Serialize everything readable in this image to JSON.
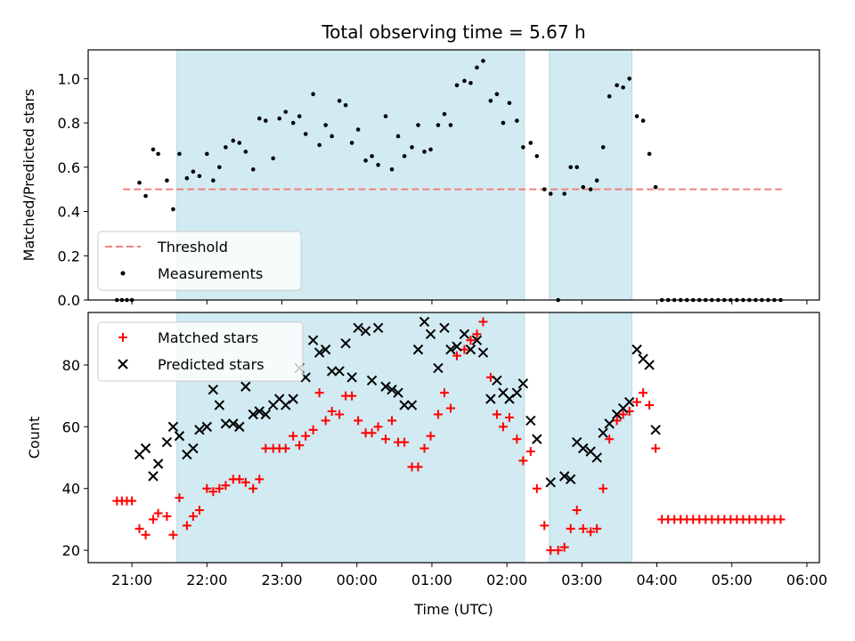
{
  "chart_data": [
    {
      "type": "scatter",
      "title": "Total observing time = 5.67 h",
      "ylabel": "Matched/Predicted stars",
      "ylim": [
        0,
        1.13
      ],
      "yticks": [
        0.0,
        0.2,
        0.4,
        0.6,
        0.8,
        1.0
      ],
      "yticklabels": [
        "0.0",
        "0.2",
        "0.4",
        "0.6",
        "0.8",
        "1.0"
      ],
      "shaded_intervals": [
        [
          "21:36",
          "02:14"
        ],
        [
          "02:34",
          "03:40"
        ]
      ],
      "shade_color": "#add8e6",
      "threshold": {
        "name": "Threshold",
        "value": 0.5,
        "x_start": "20:53",
        "x_end": "05:40",
        "color": "#f08080",
        "style": "dashed"
      },
      "series": [
        {
          "name": "Measurements",
          "color": "#000000",
          "x": [
            "20:48",
            "20:52",
            "20:56",
            "21:00",
            "21:06",
            "21:11",
            "21:17",
            "21:21",
            "21:28",
            "21:33",
            "21:38",
            "21:44",
            "21:49",
            "21:54",
            "22:00",
            "22:05",
            "22:10",
            "22:15",
            "22:21",
            "22:26",
            "22:31",
            "22:37",
            "22:42",
            "22:47",
            "22:53",
            "22:58",
            "23:03",
            "23:09",
            "23:14",
            "23:19",
            "23:25",
            "23:30",
            "23:35",
            "23:40",
            "23:46",
            "23:51",
            "23:56",
            "00:01",
            "00:07",
            "00:12",
            "00:17",
            "00:23",
            "00:28",
            "00:33",
            "00:38",
            "00:44",
            "00:49",
            "00:54",
            "00:59",
            "01:05",
            "01:10",
            "01:15",
            "01:20",
            "01:26",
            "01:31",
            "01:36",
            "01:41",
            "01:47",
            "01:52",
            "01:57",
            "02:02",
            "02:08",
            "02:13",
            "02:19",
            "02:24",
            "02:30",
            "02:35",
            "02:41",
            "02:46",
            "02:51",
            "02:56",
            "03:01",
            "03:07",
            "03:12",
            "03:17",
            "03:22",
            "03:28",
            "03:33",
            "03:38",
            "03:44",
            "03:49",
            "03:54",
            "03:59",
            "04:04",
            "04:09",
            "04:14",
            "04:19",
            "04:24",
            "04:29",
            "04:34",
            "04:39",
            "04:44",
            "04:49",
            "04:54",
            "04:59",
            "05:04",
            "05:09",
            "05:14",
            "05:19",
            "05:24",
            "05:29",
            "05:34",
            "05:39"
          ],
          "y": [
            0,
            0,
            0,
            0,
            0.53,
            0.47,
            0.68,
            0.66,
            0.54,
            0.41,
            0.66,
            0.55,
            0.58,
            0.56,
            0.66,
            0.54,
            0.6,
            0.69,
            0.72,
            0.71,
            0.67,
            0.59,
            0.82,
            0.81,
            0.64,
            0.82,
            0.85,
            0.8,
            0.83,
            0.75,
            0.93,
            0.7,
            0.79,
            0.74,
            0.9,
            0.88,
            0.71,
            0.77,
            0.63,
            0.65,
            0.61,
            0.83,
            0.59,
            0.74,
            0.65,
            0.69,
            0.79,
            0.67,
            0.68,
            0.79,
            0.84,
            0.79,
            0.97,
            0.99,
            0.98,
            1.05,
            1.08,
            0.9,
            0.93,
            0.8,
            0.89,
            0.81,
            0.69,
            0.71,
            0.65,
            0.5,
            0.48,
            0,
            0.48,
            0.6,
            0.6,
            0.51,
            0.5,
            0.54,
            0.69,
            0.92,
            0.97,
            0.96,
            1.0,
            0.83,
            0.81,
            0.66,
            0.51,
            0,
            0,
            0,
            0,
            0,
            0,
            0,
            0,
            0,
            0,
            0,
            0,
            0,
            0,
            0,
            0,
            0,
            0,
            0,
            0
          ]
        }
      ],
      "legend": {
        "position": "lower-left",
        "entries": [
          "Threshold",
          "Measurements"
        ]
      }
    },
    {
      "type": "scatter",
      "xlabel": "Time (UTC)",
      "ylabel": "Count",
      "ylim": [
        16,
        97
      ],
      "yticks": [
        20,
        40,
        60,
        80
      ],
      "yticklabels": [
        "20",
        "40",
        "60",
        "80"
      ],
      "xlim": [
        "20:25",
        "06:10"
      ],
      "xticks": [
        "21:00",
        "22:00",
        "23:00",
        "00:00",
        "01:00",
        "02:00",
        "03:00",
        "04:00",
        "05:00",
        "06:00"
      ],
      "shaded_intervals": [
        [
          "21:36",
          "02:14"
        ],
        [
          "02:34",
          "03:40"
        ]
      ],
      "shade_color": "#add8e6",
      "series": [
        {
          "name": "Matched stars",
          "marker": "+",
          "color": "#ff0000",
          "x": [
            "20:48",
            "20:52",
            "20:56",
            "21:00",
            "21:06",
            "21:11",
            "21:17",
            "21:21",
            "21:28",
            "21:33",
            "21:38",
            "21:44",
            "21:49",
            "21:54",
            "22:00",
            "22:05",
            "22:10",
            "22:15",
            "22:21",
            "22:26",
            "22:31",
            "22:37",
            "22:42",
            "22:47",
            "22:53",
            "22:58",
            "23:03",
            "23:09",
            "23:14",
            "23:19",
            "23:25",
            "23:30",
            "23:35",
            "23:40",
            "23:46",
            "23:51",
            "23:56",
            "00:01",
            "00:07",
            "00:12",
            "00:17",
            "00:23",
            "00:28",
            "00:33",
            "00:38",
            "00:44",
            "00:49",
            "00:54",
            "00:59",
            "01:05",
            "01:10",
            "01:15",
            "01:20",
            "01:26",
            "01:31",
            "01:36",
            "01:41",
            "01:47",
            "01:52",
            "01:57",
            "02:02",
            "02:08",
            "02:13",
            "02:19",
            "02:24",
            "02:30",
            "02:35",
            "02:41",
            "02:46",
            "02:51",
            "02:56",
            "03:01",
            "03:07",
            "03:12",
            "03:17",
            "03:22",
            "03:28",
            "03:33",
            "03:38",
            "03:44",
            "03:49",
            "03:54",
            "03:59",
            "04:04",
            "04:09",
            "04:14",
            "04:19",
            "04:24",
            "04:29",
            "04:34",
            "04:39",
            "04:44",
            "04:49",
            "04:54",
            "04:59",
            "05:04",
            "05:09",
            "05:14",
            "05:19",
            "05:24",
            "05:29",
            "05:34",
            "05:39"
          ],
          "y": [
            36,
            36,
            36,
            36,
            27,
            25,
            30,
            32,
            31,
            25,
            37,
            28,
            31,
            33,
            40,
            39,
            40,
            41,
            43,
            43,
            42,
            40,
            43,
            53,
            53,
            53,
            53,
            57,
            54,
            57,
            59,
            71,
            62,
            65,
            64,
            70,
            70,
            62,
            58,
            58,
            60,
            56,
            62,
            55,
            55,
            47,
            47,
            53,
            57,
            64,
            71,
            66,
            83,
            85,
            88,
            90,
            94,
            76,
            64,
            60,
            63,
            56,
            49,
            52,
            40,
            28,
            20,
            20,
            21,
            27,
            33,
            27,
            26,
            27,
            40,
            56,
            62,
            64,
            65,
            68,
            71,
            67,
            53,
            30,
            30,
            30,
            30,
            30,
            30,
            30,
            30,
            30,
            30,
            30,
            30,
            30,
            30,
            30,
            30,
            30,
            30,
            30,
            30
          ]
        },
        {
          "name": "Predicted stars",
          "marker": "x",
          "color": "#000000",
          "x": [
            "21:06",
            "21:11",
            "21:17",
            "21:21",
            "21:28",
            "21:33",
            "21:38",
            "21:44",
            "21:49",
            "21:54",
            "22:00",
            "22:05",
            "22:10",
            "22:15",
            "22:21",
            "22:26",
            "22:31",
            "22:37",
            "22:42",
            "22:47",
            "22:53",
            "22:58",
            "23:03",
            "23:09",
            "23:14",
            "23:19",
            "23:25",
            "23:30",
            "23:35",
            "23:40",
            "23:46",
            "23:51",
            "23:56",
            "00:01",
            "00:07",
            "00:12",
            "00:17",
            "00:23",
            "00:28",
            "00:33",
            "00:38",
            "00:44",
            "00:49",
            "00:54",
            "00:59",
            "01:05",
            "01:10",
            "01:15",
            "01:20",
            "01:26",
            "01:31",
            "01:36",
            "01:41",
            "01:47",
            "01:52",
            "01:57",
            "02:02",
            "02:08",
            "02:13",
            "02:19",
            "02:24",
            "02:35",
            "02:46",
            "02:51",
            "02:56",
            "03:01",
            "03:07",
            "03:12",
            "03:17",
            "03:22",
            "03:28",
            "03:33",
            "03:38",
            "03:44",
            "03:49",
            "03:54",
            "03:59"
          ],
          "y": [
            51,
            53,
            44,
            48,
            55,
            60,
            57,
            51,
            53,
            59,
            60,
            72,
            67,
            61,
            61,
            60,
            73,
            64,
            65,
            64,
            67,
            69,
            67,
            69,
            79,
            76,
            88,
            84,
            85,
            78,
            78,
            87,
            76,
            92,
            91,
            75,
            92,
            73,
            72,
            71,
            67,
            67,
            85,
            94,
            90,
            79,
            92,
            85,
            86,
            90,
            85,
            88,
            84,
            69,
            75,
            71,
            69,
            71,
            74,
            62,
            56,
            42,
            44,
            43,
            55,
            53,
            52,
            50,
            58,
            61,
            64,
            66,
            68,
            85,
            82,
            80,
            59
          ]
        }
      ],
      "legend": {
        "position": "upper-left",
        "entries": [
          "Matched stars",
          "Predicted stars"
        ]
      }
    }
  ]
}
